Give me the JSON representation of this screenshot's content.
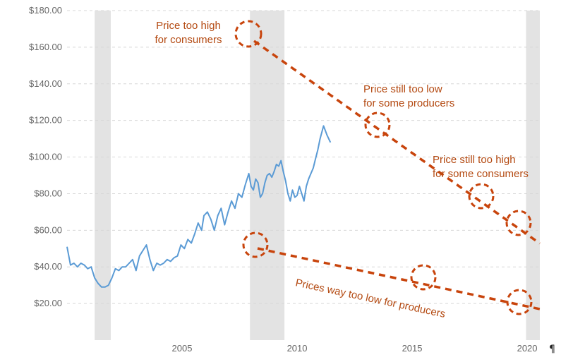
{
  "chart_data": {
    "type": "line",
    "title": "",
    "xlabel": "",
    "ylabel": "",
    "xlim": [
      2000.0,
      2020.55
    ],
    "ylim": [
      0,
      180
    ],
    "ytick_labels": [
      "$20.00",
      "$40.00",
      "$60.00",
      "$80.00",
      "$100.00",
      "$120.00",
      "$140.00",
      "$160.00",
      "$180.00"
    ],
    "yticks": [
      20,
      40,
      60,
      80,
      100,
      120,
      140,
      160,
      180
    ],
    "xtick_labels": [
      "2005",
      "2010",
      "2015",
      "2020"
    ],
    "xticks": [
      2005,
      2010,
      2015,
      2020
    ],
    "grid": "horizontal dashed",
    "recession_bands": [
      [
        2001.2,
        2001.9
      ],
      [
        2007.95,
        2009.45
      ],
      [
        2019.95,
        2020.55
      ]
    ],
    "series": [
      {
        "color": "#5b9bd5",
        "points": [
          [
            2000.0,
            51
          ],
          [
            2000.15,
            41
          ],
          [
            2000.3,
            42
          ],
          [
            2000.45,
            40
          ],
          [
            2000.6,
            42
          ],
          [
            2000.75,
            41
          ],
          [
            2000.9,
            39
          ],
          [
            2001.05,
            40
          ],
          [
            2001.2,
            34
          ],
          [
            2001.35,
            31
          ],
          [
            2001.5,
            29
          ],
          [
            2001.65,
            29
          ],
          [
            2001.8,
            30
          ],
          [
            2001.95,
            34
          ],
          [
            2002.1,
            39
          ],
          [
            2002.25,
            38
          ],
          [
            2002.4,
            40
          ],
          [
            2002.55,
            40
          ],
          [
            2002.7,
            42
          ],
          [
            2002.85,
            44
          ],
          [
            2003.0,
            38
          ],
          [
            2003.15,
            46
          ],
          [
            2003.3,
            49
          ],
          [
            2003.45,
            52
          ],
          [
            2003.6,
            44
          ],
          [
            2003.75,
            38
          ],
          [
            2003.9,
            42
          ],
          [
            2004.05,
            41
          ],
          [
            2004.2,
            42
          ],
          [
            2004.35,
            44
          ],
          [
            2004.5,
            43
          ],
          [
            2004.65,
            45
          ],
          [
            2004.8,
            46
          ],
          [
            2004.95,
            52
          ],
          [
            2005.1,
            50
          ],
          [
            2005.25,
            55
          ],
          [
            2005.4,
            53
          ],
          [
            2005.55,
            58
          ],
          [
            2005.7,
            64
          ],
          [
            2005.85,
            60
          ],
          [
            2005.95,
            68
          ],
          [
            2006.1,
            70
          ],
          [
            2006.25,
            66
          ],
          [
            2006.4,
            60
          ],
          [
            2006.55,
            68
          ],
          [
            2006.7,
            72
          ],
          [
            2006.85,
            63
          ],
          [
            2007.0,
            70
          ],
          [
            2007.15,
            76
          ],
          [
            2007.3,
            72
          ],
          [
            2007.45,
            80
          ],
          [
            2007.6,
            78
          ],
          [
            2007.75,
            85
          ],
          [
            2007.9,
            91
          ],
          [
            2008.0,
            84
          ],
          [
            2008.1,
            82
          ],
          [
            2008.2,
            88
          ],
          [
            2008.3,
            86
          ],
          [
            2008.4,
            78
          ],
          [
            2008.5,
            80
          ],
          [
            2008.6,
            86
          ],
          [
            2008.7,
            90
          ],
          [
            2008.8,
            91
          ],
          [
            2008.9,
            89
          ],
          [
            2009.0,
            92
          ],
          [
            2009.1,
            96
          ],
          [
            2009.2,
            95
          ],
          [
            2009.3,
            98
          ],
          [
            2009.4,
            92
          ],
          [
            2009.5,
            87
          ],
          [
            2009.6,
            80
          ],
          [
            2009.7,
            76
          ],
          [
            2009.8,
            82
          ],
          [
            2009.9,
            78
          ],
          [
            2010.0,
            79
          ],
          [
            2010.1,
            84
          ],
          [
            2010.2,
            80
          ],
          [
            2010.3,
            76
          ],
          [
            2010.4,
            84
          ],
          [
            2010.5,
            88
          ],
          [
            2010.6,
            91
          ],
          [
            2010.7,
            94
          ],
          [
            2010.8,
            99
          ],
          [
            2010.9,
            104
          ],
          [
            2011.0,
            110
          ],
          [
            2011.15,
            117
          ],
          [
            2011.3,
            112
          ],
          [
            2011.45,
            108
          ]
        ]
      }
    ],
    "annotations": [
      {
        "text_lines": [
          "Price too high",
          "for consumers"
        ]
      },
      {
        "text_lines": [
          "Price still too low",
          "for some producers"
        ]
      },
      {
        "text_lines": [
          "Price still too high",
          "for some consumers"
        ]
      },
      {
        "text_lines": [
          "Prices way too low for producers"
        ]
      }
    ]
  }
}
